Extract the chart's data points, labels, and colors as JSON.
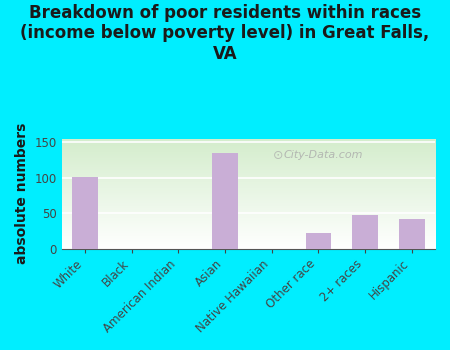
{
  "title": "Breakdown of poor residents within races\n(income below poverty level) in Great Falls,\nVA",
  "categories": [
    "White",
    "Black",
    "American Indian",
    "Asian",
    "Native Hawaiian",
    "Other race",
    "2+ races",
    "Hispanic"
  ],
  "values": [
    101,
    0,
    0,
    135,
    0,
    22,
    47,
    42
  ],
  "bar_color": "#c9aed6",
  "ylabel": "absolute numbers",
  "ylim": [
    0,
    155
  ],
  "yticks": [
    0,
    50,
    100,
    150
  ],
  "background_outer": "#00eeff",
  "grid_color": "#ffffff",
  "title_fontsize": 12,
  "ylabel_fontsize": 10,
  "tick_fontsize": 8.5,
  "watermark_text": "City-Data.com"
}
